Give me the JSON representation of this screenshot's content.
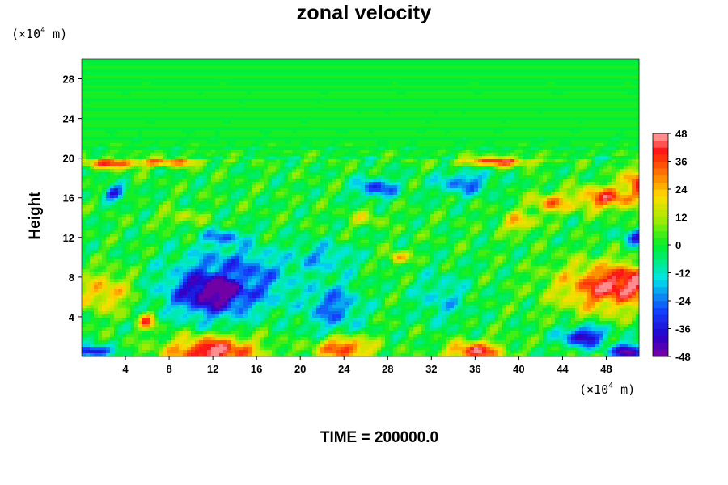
{
  "chart_data": {
    "type": "heatmap",
    "title": "zonal velocity",
    "ylabel": "Height",
    "x_unit": {
      "prefix": "(×10",
      "exp": "4",
      "suffix": " m)"
    },
    "y_unit": {
      "prefix": "(×10",
      "exp": "4",
      "suffix": " m)"
    },
    "xlim": [
      0,
      51
    ],
    "ylim": [
      0,
      30
    ],
    "x_ticks": [
      4,
      8,
      12,
      16,
      20,
      24,
      28,
      32,
      36,
      40,
      44,
      48
    ],
    "y_ticks": [
      4,
      8,
      12,
      16,
      20,
      24,
      28
    ],
    "colorbar": {
      "range": [
        -48,
        48
      ],
      "tick_values": [
        48,
        36,
        24,
        12,
        0,
        -12,
        -24,
        -36,
        -48
      ],
      "levels": 32
    },
    "field_features": [
      {
        "x": 12,
        "y": 6.5,
        "value": -44,
        "rx": 4.0,
        "ry": 2.5
      },
      {
        "x": 14,
        "y": 8.0,
        "value": -28,
        "rx": 5.0,
        "ry": 3.0
      },
      {
        "x": 23,
        "y": 5.0,
        "value": -25,
        "rx": 2.5,
        "ry": 2.5
      },
      {
        "x": 22,
        "y": 10.0,
        "value": -18,
        "rx": 3.0,
        "ry": 1.5
      },
      {
        "x": 46,
        "y": 2.0,
        "value": -42,
        "rx": 2.0,
        "ry": 1.0
      },
      {
        "x": 50,
        "y": 0.5,
        "value": -48,
        "rx": 1.5,
        "ry": 0.8
      },
      {
        "x": 3,
        "y": 16.5,
        "value": -35,
        "rx": 1.0,
        "ry": 0.7
      },
      {
        "x": 13,
        "y": 12.0,
        "value": -25,
        "rx": 2.0,
        "ry": 0.8
      },
      {
        "x": 27,
        "y": 17.0,
        "value": -30,
        "rx": 2.0,
        "ry": 1.0
      },
      {
        "x": 35,
        "y": 17.5,
        "value": -25,
        "rx": 2.5,
        "ry": 1.2
      },
      {
        "x": 51,
        "y": 12.0,
        "value": -30,
        "rx": 1.5,
        "ry": 1.0
      },
      {
        "x": 1,
        "y": 0.5,
        "value": -45,
        "rx": 1.5,
        "ry": 0.6
      },
      {
        "x": 12,
        "y": 0.5,
        "value": 48,
        "rx": 4.0,
        "ry": 1.5
      },
      {
        "x": 24,
        "y": 0.8,
        "value": 38,
        "rx": 2.5,
        "ry": 1.2
      },
      {
        "x": 36,
        "y": 0.5,
        "value": 42,
        "rx": 2.5,
        "ry": 1.0
      },
      {
        "x": 48,
        "y": 7.0,
        "value": 38,
        "rx": 4.5,
        "ry": 2.5
      },
      {
        "x": 50,
        "y": 7.5,
        "value": 46,
        "rx": 2.0,
        "ry": 1.5
      },
      {
        "x": 2,
        "y": 6.5,
        "value": 24,
        "rx": 2.5,
        "ry": 2.0
      },
      {
        "x": 6,
        "y": 3.5,
        "value": 32,
        "rx": 0.8,
        "ry": 0.8
      },
      {
        "x": 3,
        "y": 19.5,
        "value": 35,
        "rx": 3.0,
        "ry": 0.5
      },
      {
        "x": 8,
        "y": 19.6,
        "value": 30,
        "rx": 3.0,
        "ry": 0.4
      },
      {
        "x": 38,
        "y": 19.7,
        "value": 35,
        "rx": 3.5,
        "ry": 0.5
      },
      {
        "x": 48,
        "y": 16.0,
        "value": 36,
        "rx": 3.0,
        "ry": 1.2
      },
      {
        "x": 51,
        "y": 17.5,
        "value": 40,
        "rx": 1.5,
        "ry": 1.5
      },
      {
        "x": 43,
        "y": 15.5,
        "value": 28,
        "rx": 2.0,
        "ry": 1.0
      },
      {
        "x": 29,
        "y": 10.0,
        "value": 26,
        "rx": 1.0,
        "ry": 0.6
      },
      {
        "x": 40,
        "y": 13.5,
        "value": 24,
        "rx": 1.5,
        "ry": 1.0
      },
      {
        "x": 33,
        "y": 6.0,
        "value": -14,
        "rx": 2.5,
        "ry": 2.5
      },
      {
        "x": 26,
        "y": 14.0,
        "value": 14,
        "rx": 1.5,
        "ry": 0.8
      },
      {
        "x": 9,
        "y": 14.0,
        "value": 12,
        "rx": 2.0,
        "ry": 0.8
      }
    ]
  },
  "footer": {
    "time_label": "TIME = 200000.0"
  }
}
